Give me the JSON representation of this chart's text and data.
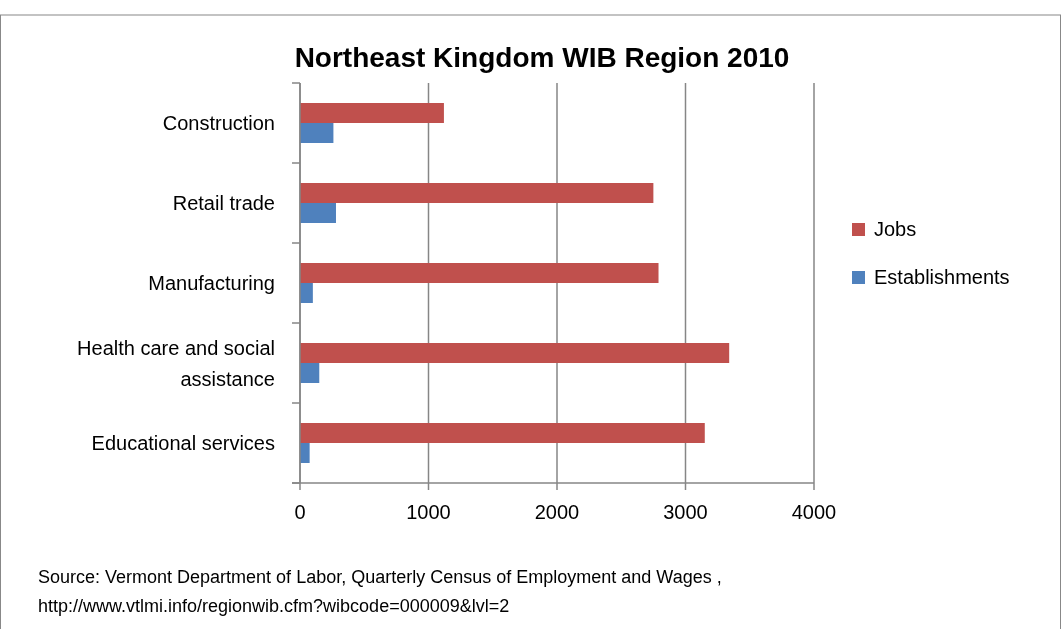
{
  "chart_data": {
    "type": "bar",
    "orientation": "horizontal",
    "title": "Northeast Kingdom WIB Region 2010",
    "categories": [
      "Construction",
      "Retail trade",
      "Manufacturing",
      "Health care and social assistance",
      "Educational services"
    ],
    "series": [
      {
        "name": "Jobs",
        "color": "#c0504d",
        "values": [
          1120,
          2750,
          2790,
          3340,
          3150
        ]
      },
      {
        "name": "Establishments",
        "color": "#4f81bd",
        "values": [
          260,
          280,
          100,
          150,
          75
        ]
      }
    ],
    "xlim": [
      0,
      4000
    ],
    "xticks": [
      0,
      1000,
      2000,
      3000,
      4000
    ],
    "grid": "x",
    "legend": "right",
    "annotations": [
      "Source: Vermont Department of Labor, Quarterly Census of Employment and Wages ,",
      "http://www.vtlmi.info/regionwib.cfm?wibcode=000009&lvl=2"
    ]
  }
}
